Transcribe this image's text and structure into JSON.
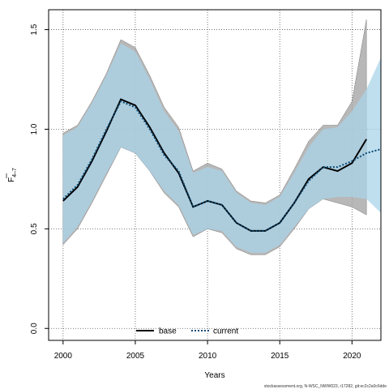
{
  "chart_data": {
    "type": "line",
    "xlabel": "Years",
    "ylabel_main": "F",
    "ylabel_sub": "4–7",
    "xlim": [
      1999,
      2022
    ],
    "ylim": [
      -0.06,
      1.6
    ],
    "x_ticks": [
      2000,
      2005,
      2010,
      2015,
      2020
    ],
    "y_ticks": [
      0.0,
      0.5,
      1.0,
      1.5
    ],
    "y_tick_labels": [
      "0.0",
      "0.5",
      "1.0",
      "1.5"
    ],
    "grid": true,
    "legend_placement": "bottom-center",
    "series": [
      {
        "name": "base",
        "color": "#000000",
        "band_color": "#a0a0a0",
        "x": [
          2000,
          2001,
          2002,
          2003,
          2004,
          2005,
          2006,
          2007,
          2008,
          2009,
          2010,
          2011,
          2012,
          2013,
          2014,
          2015,
          2016,
          2017,
          2018,
          2019,
          2020,
          2021
        ],
        "values": [
          0.64,
          0.71,
          0.84,
          0.99,
          1.15,
          1.12,
          1.01,
          0.88,
          0.78,
          0.61,
          0.64,
          0.62,
          0.53,
          0.49,
          0.49,
          0.53,
          0.63,
          0.75,
          0.81,
          0.79,
          0.83,
          0.95
        ],
        "lower": [
          0.42,
          0.5,
          0.63,
          0.77,
          0.91,
          0.88,
          0.79,
          0.68,
          0.61,
          0.46,
          0.5,
          0.48,
          0.4,
          0.37,
          0.37,
          0.41,
          0.5,
          0.6,
          0.65,
          0.63,
          0.61,
          0.57
        ],
        "upper": [
          0.98,
          1.02,
          1.14,
          1.28,
          1.45,
          1.41,
          1.27,
          1.11,
          1.01,
          0.79,
          0.83,
          0.8,
          0.69,
          0.64,
          0.63,
          0.67,
          0.8,
          0.94,
          1.02,
          1.02,
          1.14,
          1.55
        ]
      },
      {
        "name": "current",
        "color": "#0a4a73",
        "band_color": "#a9d4ea",
        "x": [
          2000,
          2001,
          2002,
          2003,
          2004,
          2005,
          2006,
          2007,
          2008,
          2009,
          2010,
          2011,
          2012,
          2013,
          2014,
          2015,
          2016,
          2017,
          2018,
          2019,
          2020,
          2021,
          2022
        ],
        "values": [
          0.65,
          0.72,
          0.85,
          1.0,
          1.14,
          1.11,
          1.0,
          0.87,
          0.79,
          0.61,
          0.64,
          0.62,
          0.53,
          0.49,
          0.49,
          0.53,
          0.63,
          0.74,
          0.81,
          0.81,
          0.84,
          0.88,
          0.9
        ],
        "lower": [
          0.43,
          0.51,
          0.64,
          0.78,
          0.91,
          0.88,
          0.79,
          0.69,
          0.62,
          0.47,
          0.5,
          0.49,
          0.41,
          0.38,
          0.38,
          0.42,
          0.51,
          0.6,
          0.65,
          0.66,
          0.66,
          0.65,
          0.58
        ],
        "upper": [
          0.97,
          1.01,
          1.13,
          1.27,
          1.43,
          1.39,
          1.25,
          1.09,
          0.99,
          0.78,
          0.81,
          0.79,
          0.68,
          0.63,
          0.62,
          0.66,
          0.78,
          0.91,
          1.0,
          1.01,
          1.09,
          1.2,
          1.36
        ]
      }
    ]
  },
  "legend": {
    "items": [
      {
        "label": "base",
        "color": "#000000",
        "dash": "solid"
      },
      {
        "label": "current",
        "color": "#0a4a73",
        "dash": "dotted"
      }
    ]
  },
  "footer": {
    "text": "stockassessment.org, N-WSC_NWW023, r17282, git:ec2c2a0c6dde"
  }
}
